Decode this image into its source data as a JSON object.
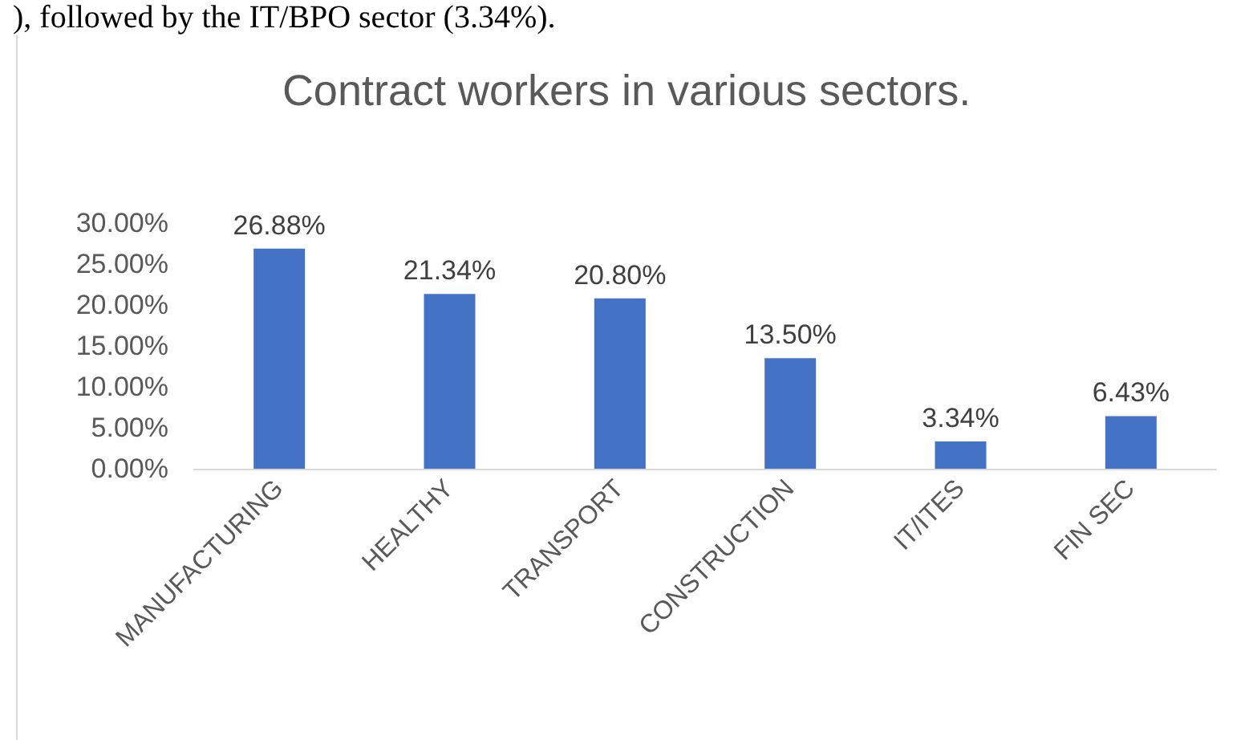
{
  "chart_data": {
    "type": "bar",
    "title": "Contract workers in various sectors.",
    "annotations": [
      "), followed by the IT/BPO sector (3.34%)."
    ],
    "categories": [
      "MANUFACTURING",
      "HEALTHY",
      "TRANSPORT",
      "CONSTRUCTION",
      "IT/ITES",
      "FIN SEC"
    ],
    "values": [
      26.88,
      21.34,
      20.8,
      13.5,
      3.34,
      6.43
    ],
    "value_labels": [
      "26.88%",
      "21.34%",
      "20.80%",
      "13.50%",
      "3.34%",
      "6.43%"
    ],
    "color": "#4472c4",
    "ylim": [
      0,
      30
    ],
    "yticks": [
      {
        "value": 0,
        "label": "0.00%"
      },
      {
        "value": 5,
        "label": "5.00%"
      },
      {
        "value": 10,
        "label": "10.00%"
      },
      {
        "value": 15,
        "label": "15.00%"
      },
      {
        "value": 20,
        "label": "20.00%"
      },
      {
        "value": 25,
        "label": "25.00%"
      },
      {
        "value": 30,
        "label": "30.00%"
      }
    ],
    "grid": false
  }
}
